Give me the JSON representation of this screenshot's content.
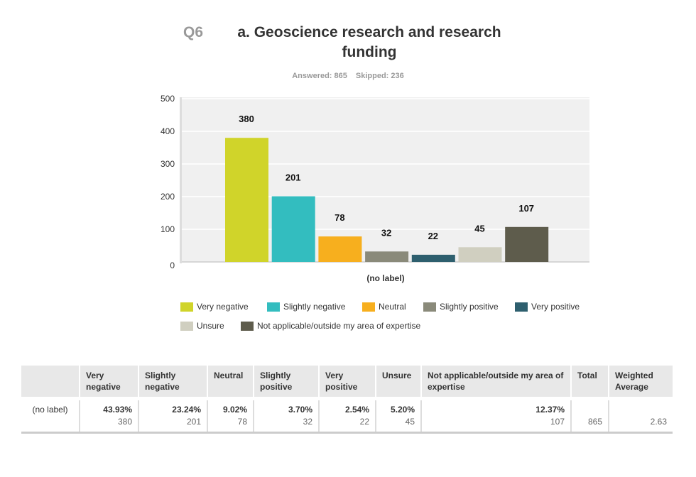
{
  "header": {
    "qnum": "Q6",
    "title": "a. Geoscience research and research funding",
    "answered": "Answered: 865",
    "skipped": "Skipped: 236"
  },
  "chart_data": {
    "type": "bar",
    "title": "a. Geoscience research and research funding",
    "xlabel": "(no label)",
    "ylabel": "",
    "ylim": [
      0,
      500
    ],
    "yticks": [
      0,
      100,
      200,
      300,
      400,
      500
    ],
    "grid": true,
    "legend": "bottom",
    "categories": [
      "(no label)"
    ],
    "series": [
      {
        "name": "Very negative",
        "values": [
          380
        ],
        "color": "#d0d42a"
      },
      {
        "name": "Slightly negative",
        "values": [
          201
        ],
        "color": "#33bdbf"
      },
      {
        "name": "Neutral",
        "values": [
          78
        ],
        "color": "#f7af1e"
      },
      {
        "name": "Slightly positive",
        "values": [
          32
        ],
        "color": "#8a8a7a"
      },
      {
        "name": "Very positive",
        "values": [
          22
        ],
        "color": "#2e5f6e"
      },
      {
        "name": "Unsure",
        "values": [
          45
        ],
        "color": "#d0cfc0"
      },
      {
        "name": "Not applicable/outside my area of expertise",
        "values": [
          107
        ],
        "color": "#5e5c4c"
      }
    ]
  },
  "table": {
    "headers": [
      "",
      "Very negative",
      "Slightly negative",
      "Neutral",
      "Slightly positive",
      "Very positive",
      "Unsure",
      "Not applicable/outside my area of expertise",
      "Total",
      "Weighted Average"
    ],
    "row": {
      "label": "(no label)",
      "percents": [
        "43.93%",
        "23.24%",
        "9.02%",
        "3.70%",
        "2.54%",
        "5.20%",
        "12.37%"
      ],
      "counts": [
        "380",
        "201",
        "78",
        "32",
        "22",
        "45",
        "107"
      ],
      "total": "865",
      "weighted_average": "2.63"
    }
  }
}
